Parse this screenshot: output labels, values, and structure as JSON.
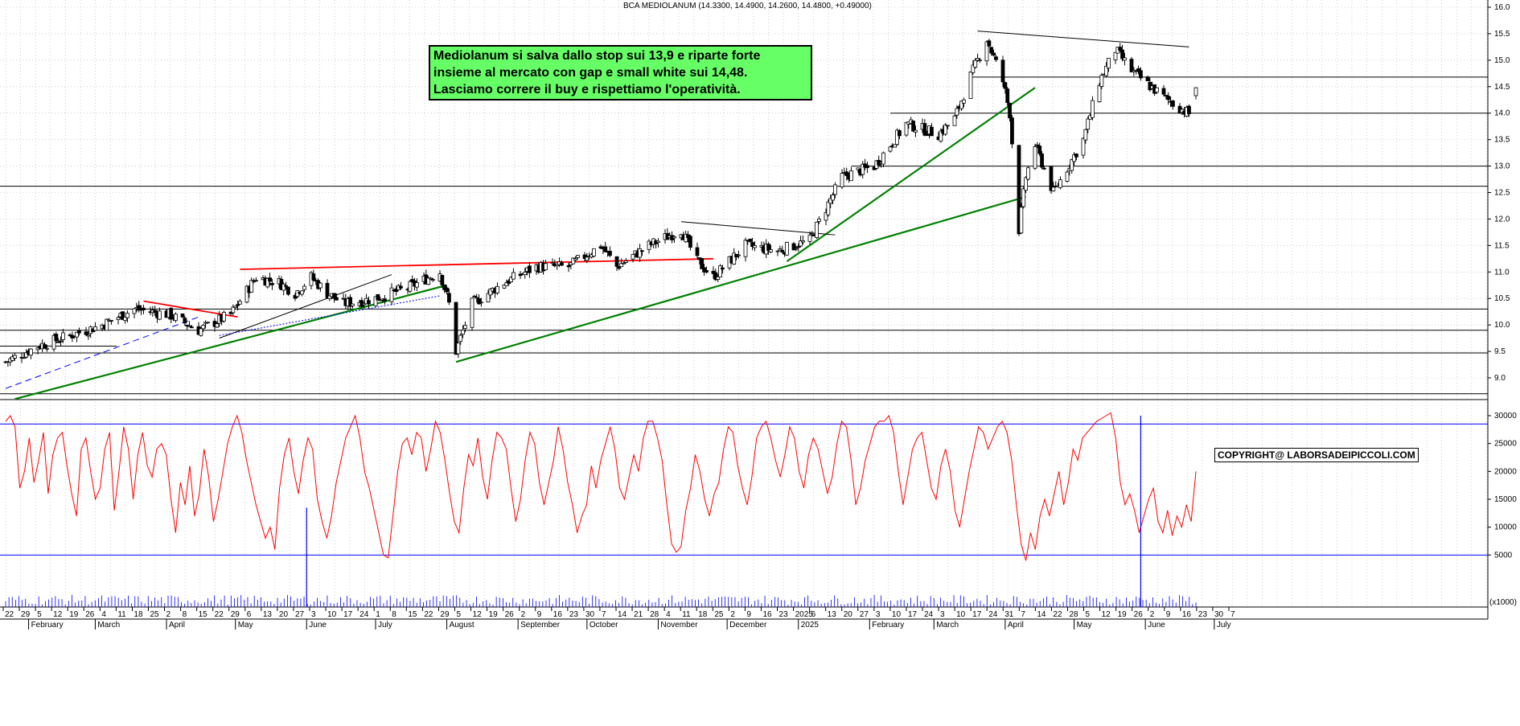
{
  "title": "BCA MEDIOLANUM (14.3300, 14.4900, 14.2600, 14.4800, +0.49000)",
  "annotation": {
    "lines": [
      "Mediolanum si salva dallo stop sui 13,9 e riparte forte",
      "insieme al mercato con gap e small white sui 14,48.",
      "Lasciamo correre il buy e rispettiamo l'operatività."
    ]
  },
  "copyright": "COPYRIGHT@ LABORSADEIPICCOLI.COM",
  "colors": {
    "price": "#000000",
    "oscillator": "#ff0000",
    "reference_lines": "#0000ff",
    "annotation_bg": "#66ff66",
    "grid": "#b0b0b0"
  },
  "chart_data": [
    {
      "type": "candlestick",
      "title": "BCA MEDIOLANUM (14.3300, 14.4900, 14.2600, 14.4800, +0.49000)",
      "ylim": [
        8.5,
        16.0
      ],
      "yticks": [
        "9.0",
        "9.5",
        "10.0",
        "10.5",
        "11.0",
        "11.5",
        "12.0",
        "12.5",
        "13.0",
        "13.5",
        "14.0",
        "14.5",
        "15.0",
        "15.5",
        "16.0"
      ],
      "grid": true,
      "last": {
        "open": 14.33,
        "high": 14.49,
        "low": 14.26,
        "close": 14.48,
        "change": 0.49
      },
      "horizontal_levels": [
        8.7,
        9.47,
        9.9,
        10.3,
        12.62,
        13.0,
        14.0,
        14.68
      ],
      "price_path": [
        [
          "2024-01-22",
          9.3
        ],
        [
          "2024-02-05",
          9.6
        ],
        [
          "2024-02-19",
          9.8
        ],
        [
          "2024-03-04",
          10.0
        ],
        [
          "2024-03-18",
          10.3
        ],
        [
          "2024-04-02",
          10.2
        ],
        [
          "2024-04-15",
          9.9
        ],
        [
          "2024-04-29",
          10.2
        ],
        [
          "2024-05-10",
          10.9
        ],
        [
          "2024-05-20",
          10.8
        ],
        [
          "2024-05-27",
          10.6
        ],
        [
          "2024-06-03",
          10.9
        ],
        [
          "2024-06-10",
          10.6
        ],
        [
          "2024-06-17",
          10.4
        ],
        [
          "2024-07-01",
          10.5
        ],
        [
          "2024-07-15",
          10.7
        ],
        [
          "2024-07-29",
          11.0
        ],
        [
          "2024-08-02",
          10.4
        ],
        [
          "2024-08-05",
          9.5
        ],
        [
          "2024-08-12",
          10.4
        ],
        [
          "2024-08-26",
          10.8
        ],
        [
          "2024-09-09",
          11.1
        ],
        [
          "2024-09-23",
          11.1
        ],
        [
          "2024-10-07",
          11.5
        ],
        [
          "2024-10-14",
          11.1
        ],
        [
          "2024-10-28",
          11.5
        ],
        [
          "2024-11-11",
          11.8
        ],
        [
          "2024-11-18",
          11.2
        ],
        [
          "2024-11-25",
          10.9
        ],
        [
          "2024-12-09",
          11.5
        ],
        [
          "2024-12-23",
          11.4
        ],
        [
          "2025-01-06",
          11.6
        ],
        [
          "2025-01-13",
          12.2
        ],
        [
          "2025-01-20",
          12.8
        ],
        [
          "2025-02-03",
          13.0
        ],
        [
          "2025-02-17",
          13.8
        ],
        [
          "2025-03-03",
          13.6
        ],
        [
          "2025-03-10",
          13.9
        ],
        [
          "2025-03-17",
          14.7
        ],
        [
          "2025-03-24",
          15.4
        ],
        [
          "2025-03-31",
          14.6
        ],
        [
          "2025-04-03",
          14.0
        ],
        [
          "2025-04-07",
          11.8
        ],
        [
          "2025-04-10",
          12.8
        ],
        [
          "2025-04-14",
          13.4
        ],
        [
          "2025-04-22",
          12.5
        ],
        [
          "2025-05-05",
          13.5
        ],
        [
          "2025-05-12",
          14.6
        ],
        [
          "2025-05-19",
          15.2
        ],
        [
          "2025-05-26",
          14.8
        ],
        [
          "2025-06-09",
          14.3
        ],
        [
          "2025-06-16",
          14.1
        ],
        [
          "2025-06-20",
          13.99
        ],
        [
          "2025-06-23",
          14.48
        ]
      ],
      "trendlines": [
        {
          "color": "green",
          "points": [
            [
              "2024-01-26",
              8.6
            ],
            [
              "2024-08-01",
              10.75
            ]
          ]
        },
        {
          "color": "green",
          "points": [
            [
              "2024-08-05",
              9.3
            ],
            [
              "2025-04-10",
              12.42
            ]
          ]
        },
        {
          "color": "green",
          "points": [
            [
              "2024-12-27",
              11.2
            ],
            [
              "2025-04-14",
              14.48
            ]
          ]
        },
        {
          "color": "red",
          "points": [
            [
              "2024-03-22",
              10.45
            ],
            [
              "2024-05-02",
              10.15
            ]
          ]
        },
        {
          "color": "red",
          "points": [
            [
              "2024-05-03",
              11.05
            ],
            [
              "2024-11-25",
              11.25
            ]
          ]
        },
        {
          "color": "black",
          "points": [
            [
              "2024-11-11",
              11.95
            ],
            [
              "2025-01-17",
              11.7
            ]
          ]
        },
        {
          "color": "black",
          "points": [
            [
              "2025-03-20",
              15.55
            ],
            [
              "2025-06-20",
              15.25
            ]
          ]
        },
        {
          "color": "black",
          "points": [
            [
              "2024-04-24",
              9.75
            ],
            [
              "2024-07-08",
              10.95
            ]
          ]
        },
        {
          "color": "blue-dash",
          "points": [
            [
              "2024-01-22",
              8.8
            ],
            [
              "2024-04-15",
              10.15
            ]
          ]
        },
        {
          "color": "blue-dot",
          "points": [
            [
              "2024-04-24",
              9.8
            ],
            [
              "2024-07-29",
              10.55
            ]
          ]
        }
      ]
    },
    {
      "type": "line",
      "ylim": [
        0,
        31000
      ],
      "yticks": [
        "5000",
        "10000",
        "15000",
        "20000",
        "25000",
        "30000"
      ],
      "reference_levels": [
        28500,
        5000
      ],
      "values": [
        29000,
        30000,
        28000,
        17000,
        20000,
        26000,
        18000,
        22000,
        27000,
        16000,
        23000,
        26000,
        27000,
        21000,
        16000,
        12000,
        24000,
        26000,
        20000,
        15000,
        17000,
        24000,
        27000,
        13000,
        20000,
        28000,
        24000,
        15000,
        23000,
        27000,
        21000,
        19000,
        24000,
        25000,
        23000,
        15000,
        9000,
        18000,
        14000,
        21000,
        12000,
        16000,
        24000,
        19000,
        11000,
        15000,
        20000,
        25000,
        28000,
        30000,
        27000,
        22000,
        18000,
        14000,
        11000,
        8000,
        10000,
        6000,
        17000,
        23000,
        26000,
        20000,
        16000,
        22000,
        26000,
        24000,
        15000,
        11000,
        8000,
        12000,
        18000,
        22000,
        26000,
        28000,
        30000,
        26000,
        20000,
        17000,
        13000,
        9000,
        5000,
        4500,
        12000,
        20000,
        25000,
        26000,
        23000,
        27000,
        26000,
        20000,
        24000,
        29000,
        27000,
        22000,
        16000,
        11000,
        9000,
        17000,
        23000,
        21000,
        26000,
        19000,
        15000,
        22000,
        27000,
        26000,
        24000,
        17000,
        11000,
        15000,
        22000,
        27000,
        25000,
        18000,
        14000,
        18000,
        22000,
        28000,
        24000,
        18000,
        14000,
        9000,
        12000,
        14000,
        21000,
        17000,
        22000,
        25000,
        28000,
        24000,
        17000,
        15000,
        19000,
        23000,
        20000,
        26000,
        29000,
        29000,
        26000,
        22000,
        14000,
        7000,
        5500,
        6500,
        13000,
        17000,
        23000,
        20000,
        15000,
        12000,
        16000,
        18000,
        24000,
        28000,
        27000,
        21000,
        17000,
        14000,
        19000,
        26000,
        28000,
        29000,
        26000,
        22000,
        19000,
        23000,
        28000,
        26000,
        20000,
        17000,
        23000,
        26000,
        24000,
        20000,
        16000,
        19000,
        25000,
        29000,
        28000,
        22000,
        14000,
        17000,
        22000,
        25000,
        28000,
        29000,
        29000,
        30000,
        27000,
        20000,
        14000,
        19000,
        24000,
        26000,
        27000,
        22000,
        17000,
        15000,
        21000,
        24000,
        20000,
        13000,
        10000,
        15000,
        20000,
        24000,
        28000,
        27000,
        24000,
        26000,
        28000,
        29000,
        27000,
        22000,
        14000,
        7000,
        4000,
        9000,
        6000,
        12000,
        15000,
        12000,
        16000,
        20000,
        14000,
        18000,
        24000,
        22000,
        26000,
        27000,
        28000,
        29000,
        29500,
        30000,
        30500,
        26000,
        18000,
        14000,
        16000,
        13000,
        9000,
        12000,
        15000,
        17000,
        11000,
        9000,
        13000,
        8500,
        12000,
        10000,
        14000,
        11000,
        20000
      ]
    }
  ],
  "x_axis": {
    "day_labels": [
      "22",
      "29",
      "5",
      "12",
      "19",
      "26",
      "4",
      "11",
      "18",
      "25",
      "2",
      "8",
      "15",
      "22",
      "29",
      "6",
      "13",
      "20",
      "27",
      "3",
      "10",
      "17",
      "24",
      "1",
      "8",
      "15",
      "22",
      "29",
      "5",
      "12",
      "19",
      "26",
      "2",
      "9",
      "16",
      "23",
      "30",
      "7",
      "14",
      "21",
      "28",
      "4",
      "11",
      "18",
      "25",
      "2",
      "9",
      "16",
      "23",
      "2025",
      "6",
      "13",
      "20",
      "27",
      "3",
      "10",
      "17",
      "24",
      "3",
      "10",
      "17",
      "24",
      "31",
      "7",
      "14",
      "22",
      "28",
      "5",
      "12",
      "19",
      "26",
      "2",
      "9",
      "16",
      "23",
      "30",
      "7"
    ],
    "month_labels": [
      "February",
      "March",
      "April",
      "May",
      "June",
      "July",
      "August",
      "September",
      "October",
      "November",
      "December",
      "2025",
      "February",
      "March",
      "April",
      "May",
      "June",
      "July"
    ],
    "unit_label": "(x1000)"
  }
}
